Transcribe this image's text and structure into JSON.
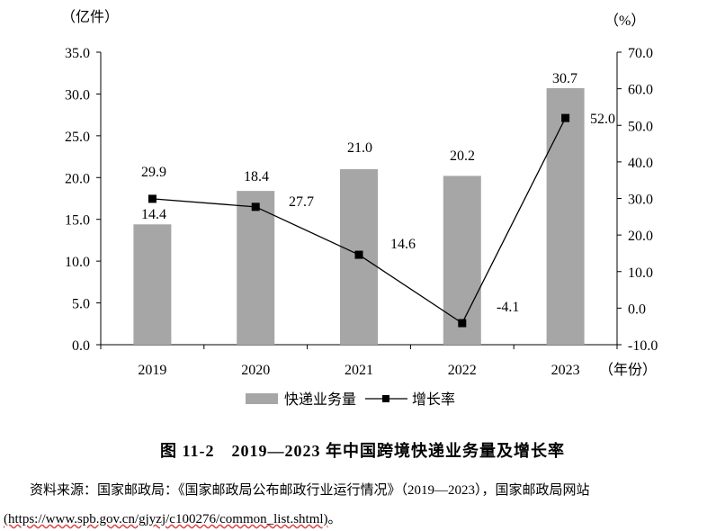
{
  "chart_data": {
    "type": "bar+line",
    "categories": [
      "2019",
      "2020",
      "2021",
      "2022",
      "2023"
    ],
    "series": [
      {
        "name": "快递业务量",
        "axis": "left",
        "type": "bar",
        "values": [
          14.4,
          18.4,
          21.0,
          20.2,
          30.7
        ],
        "labels": [
          "14.4",
          "18.4",
          "21.0",
          "20.2",
          "30.7"
        ]
      },
      {
        "name": "增长率",
        "axis": "right",
        "type": "line",
        "values": [
          29.9,
          27.7,
          14.6,
          -4.1,
          52.0
        ],
        "labels": [
          "29.9",
          "27.7",
          "14.6",
          "-4.1",
          "52.0"
        ]
      }
    ],
    "left_axis": {
      "unit": "（亿件）",
      "ylim": [
        0,
        35
      ],
      "ticks": [
        "0.0",
        "5.0",
        "10.0",
        "15.0",
        "20.0",
        "25.0",
        "30.0",
        "35.0"
      ]
    },
    "right_axis": {
      "unit": "（%）",
      "ylim": [
        -10,
        70
      ],
      "ticks": [
        "-10.0",
        "0.0",
        "10.0",
        "20.0",
        "30.0",
        "40.0",
        "50.0",
        "60.0",
        "70.0"
      ]
    },
    "x_unit": "（年份）",
    "legend": {
      "position": "bottom-center",
      "bar_label": "快递业务量",
      "line_label": "增长率"
    },
    "colors": {
      "bar": "#a6a6a6",
      "line": "#000000"
    }
  },
  "caption": "图 11-2　2019—2023 年中国跨境快递业务量及增长率",
  "source": {
    "line1": "资料来源：国家邮政局：《国家邮政局公布邮政行业运行情况》（2019—2023），国家邮政局网站",
    "url": "(https://www.spb.gov.cn/gjyzj/c100276/common_list.shtml)",
    "suffix": "。"
  }
}
